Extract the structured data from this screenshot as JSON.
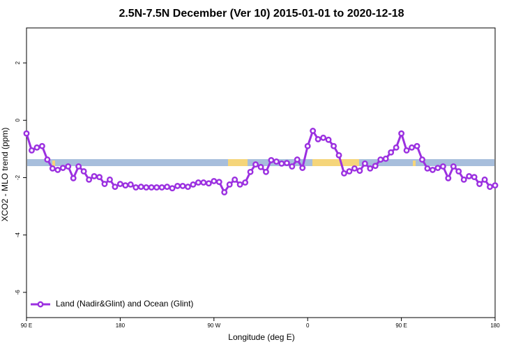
{
  "chart_data": {
    "type": "line",
    "title": "2.5N-7.5N December (Ver 10)   2015-01-01 to 2020-12-18",
    "x_label": "Longitude (deg E)",
    "y_label": "XCO2 - MLO trend (ppm)",
    "x": [
      90,
      95,
      100,
      105,
      110,
      115,
      120,
      125,
      130,
      135,
      140,
      145,
      150,
      155,
      160,
      165,
      170,
      175,
      180,
      185,
      190,
      195,
      200,
      205,
      210,
      215,
      220,
      225,
      230,
      235,
      240,
      245,
      250,
      255,
      260,
      265,
      270,
      275,
      280,
      285,
      290,
      295,
      300,
      305,
      310,
      315,
      320,
      325,
      330,
      335,
      340,
      345,
      350,
      355,
      360,
      365,
      370,
      375,
      380,
      385,
      390,
      395,
      400,
      405,
      410,
      415,
      420,
      425,
      430,
      435,
      440,
      445,
      450,
      455,
      460,
      465,
      470,
      475,
      480,
      485,
      490,
      495,
      500,
      505,
      510,
      515,
      520,
      525,
      530,
      535,
      540
    ],
    "series": [
      {
        "name": "Land (Nadir&Glint) and Ocean (Glint)",
        "color": "#9b30e0",
        "values": [
          -0.46,
          -1.05,
          -0.95,
          -0.9,
          -1.37,
          -1.68,
          -1.73,
          -1.66,
          -1.61,
          -2.02,
          -1.61,
          -1.78,
          -2.07,
          -1.95,
          -1.98,
          -2.22,
          -2.07,
          -2.32,
          -2.22,
          -2.27,
          -2.24,
          -2.34,
          -2.32,
          -2.34,
          -2.34,
          -2.34,
          -2.34,
          -2.32,
          -2.37,
          -2.29,
          -2.29,
          -2.32,
          -2.24,
          -2.17,
          -2.17,
          -2.2,
          -2.12,
          -2.15,
          -2.51,
          -2.24,
          -2.07,
          -2.24,
          -2.17,
          -1.8,
          -1.54,
          -1.63,
          -1.8,
          -1.39,
          -1.44,
          -1.51,
          -1.49,
          -1.61,
          -1.37,
          -1.66,
          -0.9,
          -0.37,
          -0.66,
          -0.61,
          -0.68,
          -0.9,
          -1.22,
          -1.85,
          -1.78,
          -1.68,
          -1.76,
          -1.51,
          -1.68,
          -1.59,
          -1.37,
          -1.34,
          -1.12,
          -0.95,
          -0.46,
          -1.05,
          -0.95,
          -0.9,
          -1.37,
          -1.68,
          -1.73,
          -1.66,
          -1.61,
          -2.02,
          -1.61,
          -1.78,
          -2.07,
          -1.95,
          -1.98,
          -2.22,
          -2.07,
          -2.32,
          -2.27
        ]
      }
    ],
    "xlim": [
      90,
      540
    ],
    "xticks": [
      {
        "value": 90,
        "label": "90 E"
      },
      180,
      {
        "value": 270,
        "label": "90 W"
      },
      {
        "value": 360,
        "label": "0"
      },
      {
        "value": 450,
        "label": "90 E"
      },
      {
        "value": 540,
        "label": "180"
      }
    ],
    "ylim": [
      -6.88,
      3.22
    ],
    "yticks": [
      -6,
      -4,
      -2,
      0,
      2
    ],
    "legend": "bottom-left"
  }
}
